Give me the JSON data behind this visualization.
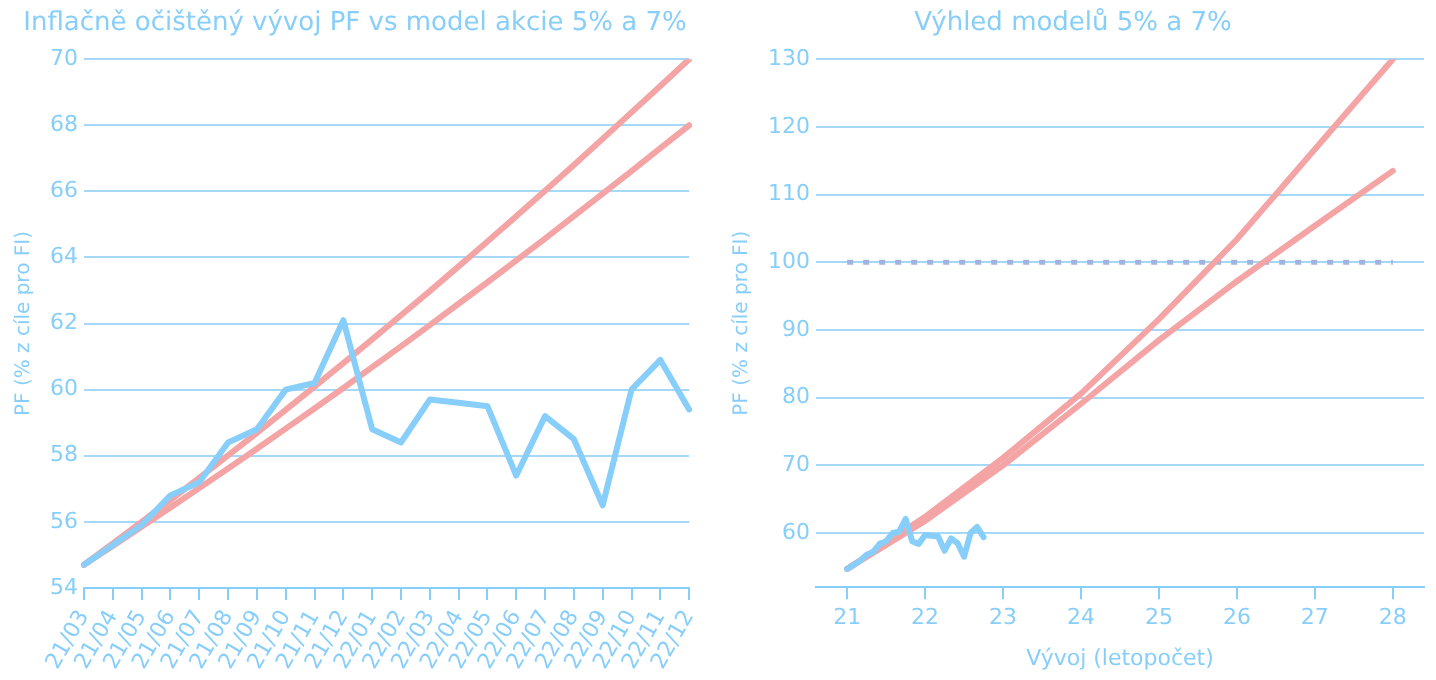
{
  "chart_data": [
    {
      "type": "line",
      "title": "Inflačně očištěný vývoj PF vs model akcie 5% a 7%",
      "ylabel": "PF (% z cíle pro FI)",
      "categories": [
        "21/03",
        "21/04",
        "21/05",
        "21/06",
        "21/07",
        "21/08",
        "21/09",
        "21/10",
        "21/11",
        "21/12",
        "22/01",
        "22/02",
        "22/03",
        "22/04",
        "22/05",
        "22/06",
        "22/07",
        "22/08",
        "22/09",
        "22/10",
        "22/11",
        "22/12"
      ],
      "series": [
        {
          "color": "#f4a4a4",
          "values": [
            54.7,
            55.35,
            56.0,
            56.66,
            57.33,
            58.01,
            58.69,
            59.39,
            60.09,
            60.8,
            61.52,
            62.25,
            62.98,
            63.73,
            64.48,
            65.25,
            66.02,
            66.8,
            67.59,
            68.39,
            69.19,
            70.0
          ]
        },
        {
          "color": "#f4a4a4",
          "values": [
            54.7,
            55.27,
            55.85,
            56.43,
            57.02,
            57.61,
            58.21,
            58.82,
            59.43,
            60.05,
            60.68,
            61.31,
            61.95,
            62.6,
            63.25,
            63.91,
            64.57,
            65.25,
            65.93,
            66.61,
            67.31,
            68.0
          ]
        },
        {
          "color": "#87cefa",
          "values": [
            54.7,
            55.3,
            55.9,
            56.8,
            57.2,
            58.4,
            58.8,
            60.0,
            60.2,
            62.1,
            58.8,
            58.4,
            59.7,
            59.6,
            59.5,
            57.4,
            59.2,
            58.5,
            56.5,
            60.0,
            60.9,
            59.4
          ]
        }
      ],
      "ylim": [
        54,
        70
      ],
      "yticks": [
        54,
        56,
        58,
        60,
        62,
        64,
        66,
        68,
        70
      ],
      "grid": "y"
    },
    {
      "type": "line",
      "title": "Výhled modelů 5% a 7%",
      "xlabel": "Vývoj (letopočet)",
      "ylabel": "PF (% z cíle pro FI)",
      "x": [
        21,
        22,
        23,
        24,
        25,
        26,
        27,
        28
      ],
      "series": [
        {
          "color": "#9fb4e0",
          "line_style": "dotted",
          "x": [
            21,
            28
          ],
          "values": [
            100,
            100
          ]
        },
        {
          "color": "#f4a4a4",
          "values": [
            54.7,
            62.4,
            71.1,
            80.6,
            91.6,
            103.4,
            116.7,
            130
          ]
        },
        {
          "color": "#f4a4a4",
          "values": [
            54.7,
            61.8,
            70.0,
            79.1,
            88.5,
            97.2,
            105.4,
            113.5
          ]
        },
        {
          "color": "#87cefa",
          "x": [
            21,
            21.083,
            21.167,
            21.25,
            21.333,
            21.417,
            21.5,
            21.583,
            21.667,
            21.75,
            21.833,
            21.917,
            22,
            22.083,
            22.167,
            22.25,
            22.333,
            22.417,
            22.5,
            22.583,
            22.667,
            22.75
          ],
          "values": [
            54.7,
            55.3,
            55.9,
            56.8,
            57.2,
            58.4,
            58.8,
            60.0,
            60.2,
            62.1,
            58.8,
            58.4,
            59.7,
            59.6,
            59.5,
            57.4,
            59.2,
            58.5,
            56.5,
            60.0,
            60.9,
            59.4
          ]
        }
      ],
      "xlim": [
        20.6,
        28.4
      ],
      "xticks": [
        21,
        22,
        23,
        24,
        25,
        26,
        27,
        28
      ],
      "ylim": [
        52,
        130
      ],
      "yticks": [
        60,
        70,
        80,
        90,
        100,
        110,
        120,
        130
      ],
      "grid": "y"
    }
  ]
}
